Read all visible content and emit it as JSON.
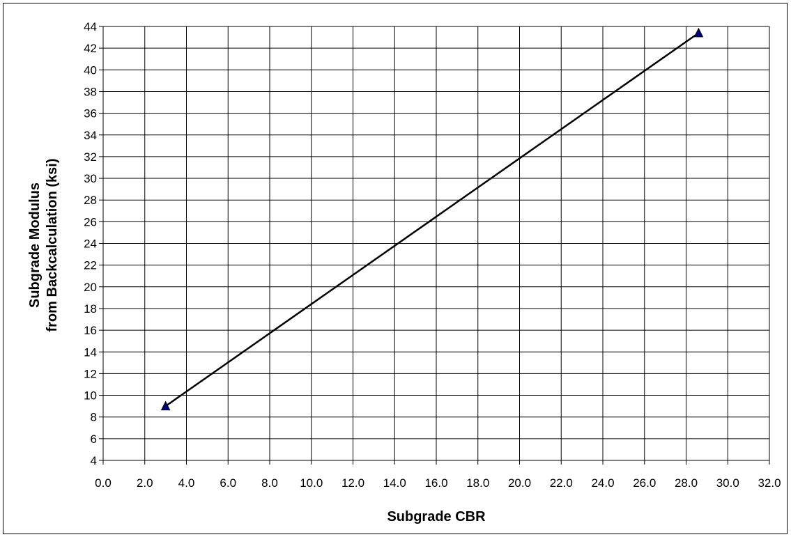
{
  "chart_data": {
    "type": "line",
    "title": "",
    "xlabel": "Subgrade CBR",
    "ylabel_lines": [
      "Subgrade Modulus",
      "from Backcalculation (ksi)"
    ],
    "xlim": [
      0,
      32
    ],
    "ylim": [
      4,
      44
    ],
    "x_tick_step": 2,
    "y_tick_step": 2,
    "x_tick_labels": [
      "0.0",
      "2.0",
      "4.0",
      "6.0",
      "8.0",
      "10.0",
      "12.0",
      "14.0",
      "16.0",
      "18.0",
      "20.0",
      "22.0",
      "24.0",
      "26.0",
      "28.0",
      "30.0",
      "32.0"
    ],
    "y_tick_labels": [
      "4",
      "6",
      "8",
      "10",
      "12",
      "14",
      "16",
      "18",
      "20",
      "22",
      "24",
      "26",
      "28",
      "30",
      "32",
      "34",
      "36",
      "38",
      "40",
      "42",
      "44"
    ],
    "grid": true,
    "legend": "none",
    "series": [
      {
        "marker": "triangle",
        "marker_color": "#000080",
        "line_color": "#000000",
        "points": [
          {
            "x": 3.0,
            "y": 9.0
          },
          {
            "x": 28.6,
            "y": 43.4
          }
        ]
      }
    ]
  }
}
